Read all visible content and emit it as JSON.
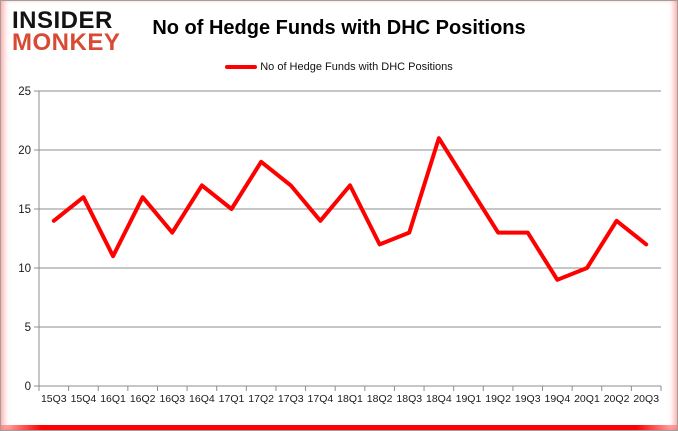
{
  "logo": {
    "line1": "INSIDER",
    "line2": "MONKEY"
  },
  "header": {
    "title": "No of Hedge Funds with DHC Positions"
  },
  "legend": {
    "label": "No of Hedge Funds with DHC Positions"
  },
  "colors": {
    "series_line": "#ff0000",
    "grid": "#8c8c8c",
    "axis": "#8c8c8c",
    "tick_text": "#1a1a1a",
    "logo_accent": "#d94a35",
    "logo_dark": "#131313"
  },
  "chart_data": {
    "type": "line",
    "title": "No of Hedge Funds with DHC Positions",
    "categories": [
      "15Q3",
      "15Q4",
      "16Q1",
      "16Q2",
      "16Q3",
      "16Q4",
      "17Q1",
      "17Q2",
      "17Q3",
      "17Q4",
      "18Q1",
      "18Q2",
      "18Q3",
      "18Q4",
      "19Q1",
      "19Q2",
      "19Q3",
      "19Q4",
      "20Q1",
      "20Q2",
      "20Q3"
    ],
    "series": [
      {
        "name": "No of Hedge Funds with DHC Positions",
        "values": [
          14,
          16,
          11,
          16,
          13,
          17,
          15,
          19,
          17,
          14,
          17,
          12,
          13,
          21,
          17,
          13,
          13,
          9,
          10,
          14,
          12
        ]
      }
    ],
    "xlabel": "",
    "ylabel": "",
    "ylim": [
      0,
      25
    ],
    "yticks": [
      0,
      5,
      10,
      15,
      20,
      25
    ],
    "grid": true,
    "legend_position": "top-center"
  }
}
